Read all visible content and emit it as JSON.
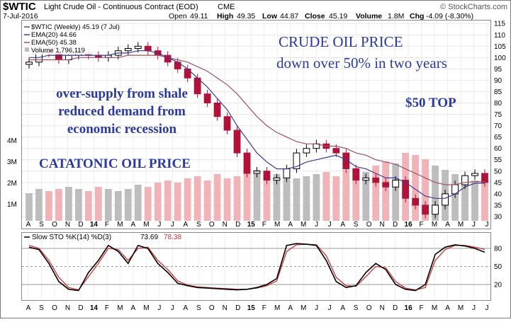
{
  "header": {
    "symbol": "$WTIC",
    "name": "Light Crude Oil - Continuous Contract (EOD)",
    "exchange": "CME",
    "copyright": "© StockCharts.com",
    "date": "7-Jul-2016",
    "ohlc": {
      "open_label": "Open",
      "open": "49.11",
      "high_label": "High",
      "high": "49.35",
      "low_label": "Low",
      "low": "44.87",
      "close_label": "Close",
      "close": "45.19",
      "volume_label": "Volume",
      "volume": "1.8M",
      "chg_label": "Chg",
      "chg": "-4.09 (-8.30%)"
    }
  },
  "legend": {
    "main": "$WTIC (Weekly) 45.19 (7 Jul)",
    "ema20": "EMA(20) 44.66",
    "ema50": "EMA(50) 45.38",
    "volume": "Volume 1,796,119"
  },
  "annotations": {
    "title_line1": "CRUDE OIL PRICE",
    "title_line2": "down over 50% in two years",
    "cause_line1": "over-supply from shale",
    "cause_line2": "reduced demand from",
    "cause_line3": "economic recession",
    "catatonic": "CATATONIC OIL PRICE",
    "top": "$50 TOP"
  },
  "stoch": {
    "label": "Slow STO %K(14) %D(3)",
    "k": "73.69",
    "d": "78.38"
  },
  "colors": {
    "up_candle": "#000000",
    "down_candle": "#b0123a",
    "ema20": "#3b3b8f",
    "ema50": "#a05060",
    "volume_up": "#bdbdbd",
    "volume_down": "#f0b4b8",
    "annotation": "#2a3aa0",
    "stoch_k": "#000000",
    "stoch_d": "#cc3333"
  },
  "chart_data": {
    "type": "line",
    "title": "$WTIC Light Crude Oil - Continuous Contract (EOD) CME",
    "price_axis": [
      115,
      110,
      105,
      100,
      95,
      90,
      85,
      80,
      75,
      70,
      65,
      60,
      55,
      50,
      45,
      40,
      35,
      30
    ],
    "volume_axis": [
      "4M",
      "3M",
      "2M",
      "1M"
    ],
    "stoch_axis": [
      80,
      50,
      20
    ],
    "x_ticks": [
      "A",
      "S",
      "O",
      "N",
      "D",
      "14",
      "F",
      "M",
      "A",
      "M",
      "J",
      "J",
      "A",
      "S",
      "O",
      "N",
      "D",
      "15",
      "F",
      "M",
      "A",
      "M",
      "J",
      "J",
      "A",
      "S",
      "O",
      "N",
      "D",
      "16",
      "F",
      "M",
      "A",
      "M",
      "J",
      "J"
    ],
    "price_close": [
      98,
      103,
      102,
      99,
      101,
      102,
      101,
      100,
      101,
      103,
      104,
      105,
      103,
      101,
      98,
      95,
      91,
      84,
      80,
      74,
      68,
      58,
      49,
      50,
      46,
      47,
      51,
      58,
      60,
      62,
      60,
      58,
      51,
      46,
      47,
      45,
      43,
      46,
      38,
      35,
      31,
      35,
      40,
      44,
      48,
      49,
      45
    ],
    "ema20": [
      100,
      100,
      101,
      101,
      101,
      101,
      101,
      101,
      101,
      102,
      102,
      103,
      103,
      102,
      100,
      98,
      95,
      91,
      87,
      82,
      77,
      70,
      64,
      58,
      54,
      51,
      51,
      52,
      54,
      55,
      56,
      57,
      55,
      52,
      51,
      49,
      47,
      47,
      45,
      42,
      39,
      38,
      38,
      40,
      43,
      44.66,
      44.66
    ],
    "ema50": [
      99,
      99,
      99,
      99,
      99,
      100,
      100,
      100,
      100,
      100,
      101,
      101,
      101,
      101,
      100,
      99,
      98,
      96,
      94,
      91,
      88,
      84,
      79,
      74,
      70,
      67,
      65,
      63,
      62,
      62,
      61,
      61,
      60,
      58,
      57,
      55,
      54,
      53,
      51,
      49,
      47,
      45,
      44,
      44,
      45,
      45.38,
      45.38
    ],
    "volume_millions": [
      1.3,
      1.5,
      1.4,
      1.5,
      1.6,
      1.5,
      1.4,
      1.6,
      1.5,
      1.4,
      1.5,
      1.7,
      1.6,
      1.8,
      1.9,
      1.8,
      2.0,
      2.1,
      1.9,
      2.2,
      2.0,
      2.1,
      2.3,
      2.4,
      2.3,
      2.2,
      2.1,
      2.0,
      2.1,
      2.2,
      2.3,
      2.1,
      2.4,
      2.5,
      2.3,
      2.6,
      2.8,
      2.7,
      3.2,
      3.1,
      2.9,
      2.6,
      2.4,
      2.2,
      2.1,
      1.9,
      1.8
    ],
    "stoch_k": [
      82,
      78,
      55,
      25,
      12,
      10,
      40,
      60,
      85,
      75,
      55,
      85,
      80,
      55,
      40,
      22,
      18,
      15,
      14,
      13,
      12,
      11,
      12,
      15,
      20,
      30,
      85,
      88,
      87,
      85,
      60,
      25,
      15,
      18,
      40,
      55,
      45,
      20,
      12,
      10,
      20,
      70,
      82,
      86,
      84,
      80,
      73.69
    ],
    "stoch_d": [
      85,
      80,
      60,
      32,
      15,
      11,
      33,
      55,
      80,
      78,
      60,
      80,
      82,
      60,
      45,
      26,
      19,
      16,
      15,
      14,
      13,
      12,
      12,
      14,
      18,
      26,
      75,
      86,
      87,
      86,
      68,
      32,
      18,
      17,
      33,
      50,
      48,
      25,
      14,
      11,
      15,
      60,
      78,
      85,
      85,
      82,
      78.38
    ]
  }
}
